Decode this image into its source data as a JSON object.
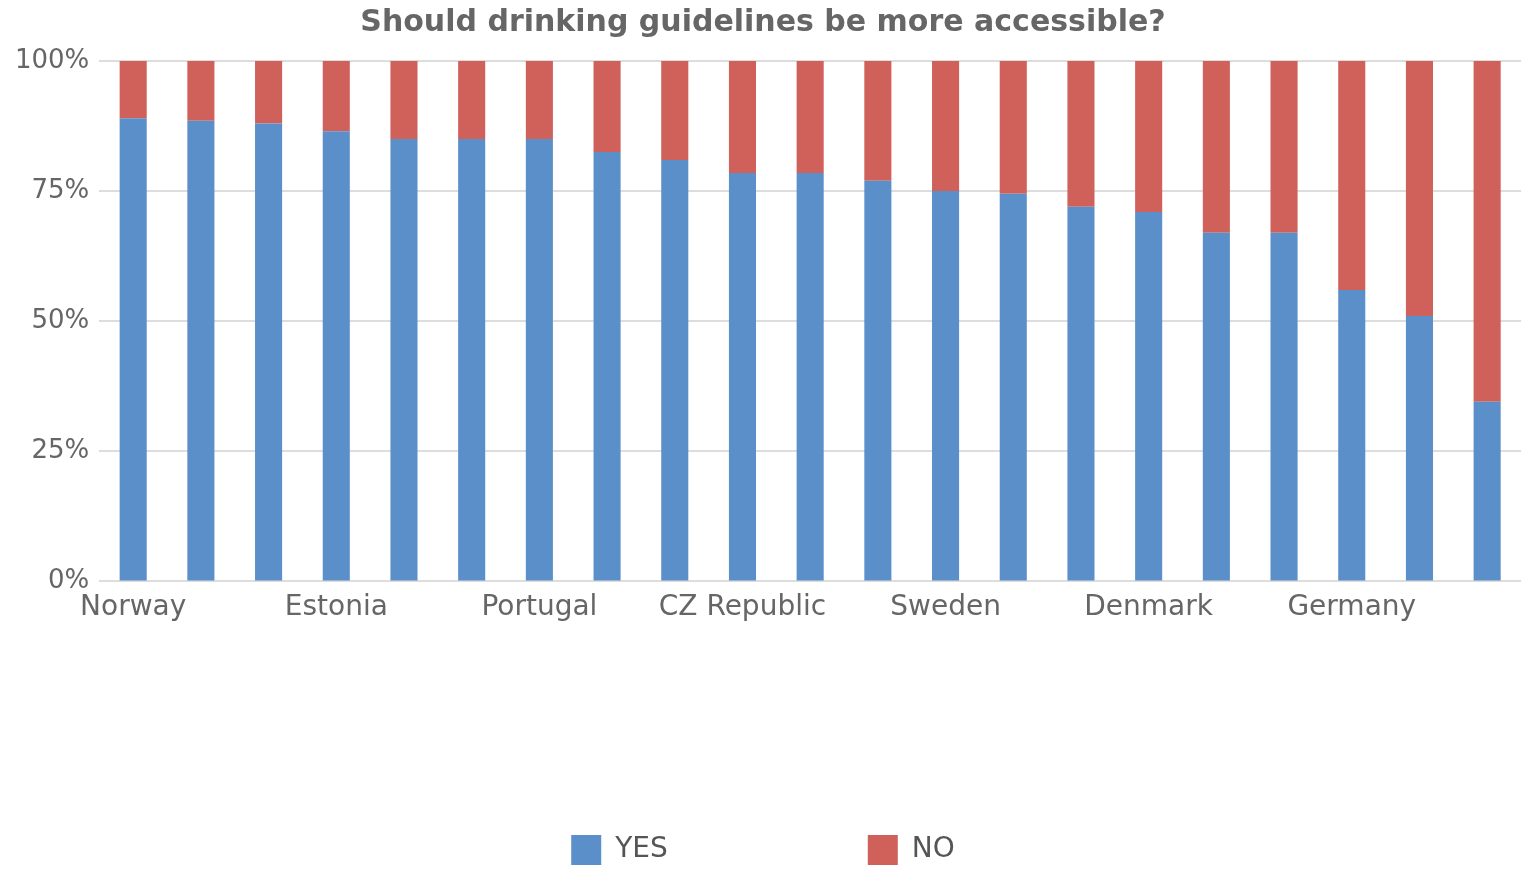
{
  "chart_data": {
    "type": "bar",
    "title": "Should drinking guidelines be more accessible?",
    "stacked": true,
    "grid": "y",
    "legend": "bottom",
    "categories": [
      "Norway",
      null,
      null,
      "Estonia",
      null,
      null,
      "Portugal",
      null,
      null,
      "CZ Republic",
      null,
      null,
      "Sweden",
      null,
      null,
      "Denmark",
      null,
      null,
      "Germany",
      null,
      null
    ],
    "ylim": [
      0,
      100
    ],
    "yticks": [
      {
        "value": 0,
        "label": "0%"
      },
      {
        "value": 25,
        "label": "25%"
      },
      {
        "value": 50,
        "label": "50%"
      },
      {
        "value": 75,
        "label": "75%"
      },
      {
        "value": 100,
        "label": "100%"
      }
    ],
    "series": [
      {
        "name": "YES",
        "color": "#5b8fc9",
        "values": [
          89,
          88.5,
          88,
          86.5,
          85,
          85,
          85,
          82.5,
          81,
          78.5,
          78.5,
          77,
          75,
          74.5,
          72,
          71,
          67,
          67,
          56,
          51,
          34.5
        ]
      },
      {
        "name": "NO",
        "color": "#d0605a",
        "values": [
          11,
          11.5,
          12,
          13.5,
          15,
          15,
          15,
          17.5,
          19,
          21.5,
          21.5,
          23,
          25,
          25.5,
          28,
          29,
          33,
          33,
          44,
          49,
          65.5
        ]
      }
    ]
  }
}
